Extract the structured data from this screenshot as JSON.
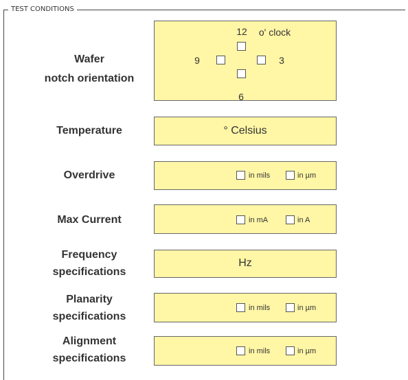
{
  "legend": "TEST CONDITIONS",
  "wafer": {
    "label": [
      "Wafer",
      "notch orientation"
    ],
    "top": "12",
    "unit": "o' clock",
    "left": "9",
    "right": "3",
    "bottom": "6"
  },
  "temperature": {
    "label": "Temperature",
    "unit": "° Celsius"
  },
  "overdrive": {
    "label": "Overdrive",
    "options": [
      "in mils",
      "in µm"
    ]
  },
  "max_current": {
    "label": "Max Current",
    "options": [
      "in mA",
      "in A"
    ]
  },
  "frequency": {
    "label": [
      "Frequency",
      "specifications"
    ],
    "unit": "Hz"
  },
  "planarity": {
    "label": [
      "Planarity",
      "specifications"
    ],
    "options": [
      "in mils",
      "in µm"
    ]
  },
  "alignment": {
    "label": [
      "Alignment",
      "specifications"
    ],
    "options": [
      "in mils",
      "in µm"
    ]
  }
}
